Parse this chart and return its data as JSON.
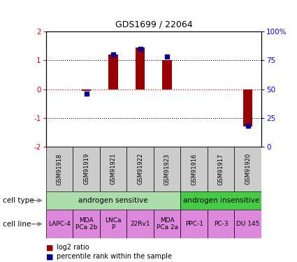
{
  "title": "GDS1699 / 22064",
  "samples": [
    "GSM91918",
    "GSM91919",
    "GSM91921",
    "GSM91922",
    "GSM91923",
    "GSM91916",
    "GSM91917",
    "GSM91920"
  ],
  "log2_ratio": [
    0.0,
    -0.05,
    1.2,
    1.45,
    1.0,
    0.0,
    0.0,
    -1.3
  ],
  "percentile_rank": [
    null,
    46,
    80,
    85,
    78,
    null,
    null,
    18
  ],
  "cell_type_groups": [
    {
      "label": "androgen sensitive",
      "start": 0,
      "end": 5,
      "color": "#aaddaa"
    },
    {
      "label": "androgen insensitive",
      "start": 5,
      "end": 8,
      "color": "#44cc44"
    }
  ],
  "cell_lines": [
    {
      "label": "LAPC-4",
      "start": 0,
      "end": 1
    },
    {
      "label": "MDA\nPCa 2b",
      "start": 1,
      "end": 2
    },
    {
      "label": "LNCa\nP",
      "start": 2,
      "end": 3
    },
    {
      "label": "22Rv1",
      "start": 3,
      "end": 4
    },
    {
      "label": "MDA\nPCa 2a",
      "start": 4,
      "end": 5
    },
    {
      "label": "PPC-1",
      "start": 5,
      "end": 6
    },
    {
      "label": "PC-3",
      "start": 6,
      "end": 7
    },
    {
      "label": "DU 145",
      "start": 7,
      "end": 8
    }
  ],
  "cell_line_color": "#dd88dd",
  "gsm_label_bg": "#cccccc",
  "bar_color": "#990000",
  "dot_color": "#000099",
  "ylim": [
    -2,
    2
  ],
  "right_yticks": [
    0,
    25,
    50,
    75,
    100
  ],
  "right_yticklabels": [
    "0",
    "25",
    "50",
    "75",
    "100%"
  ],
  "left_yticks": [
    -2,
    -1,
    0,
    1,
    2
  ],
  "dotted_lines_black": [
    -1,
    1
  ],
  "dotted_line_red": 0
}
